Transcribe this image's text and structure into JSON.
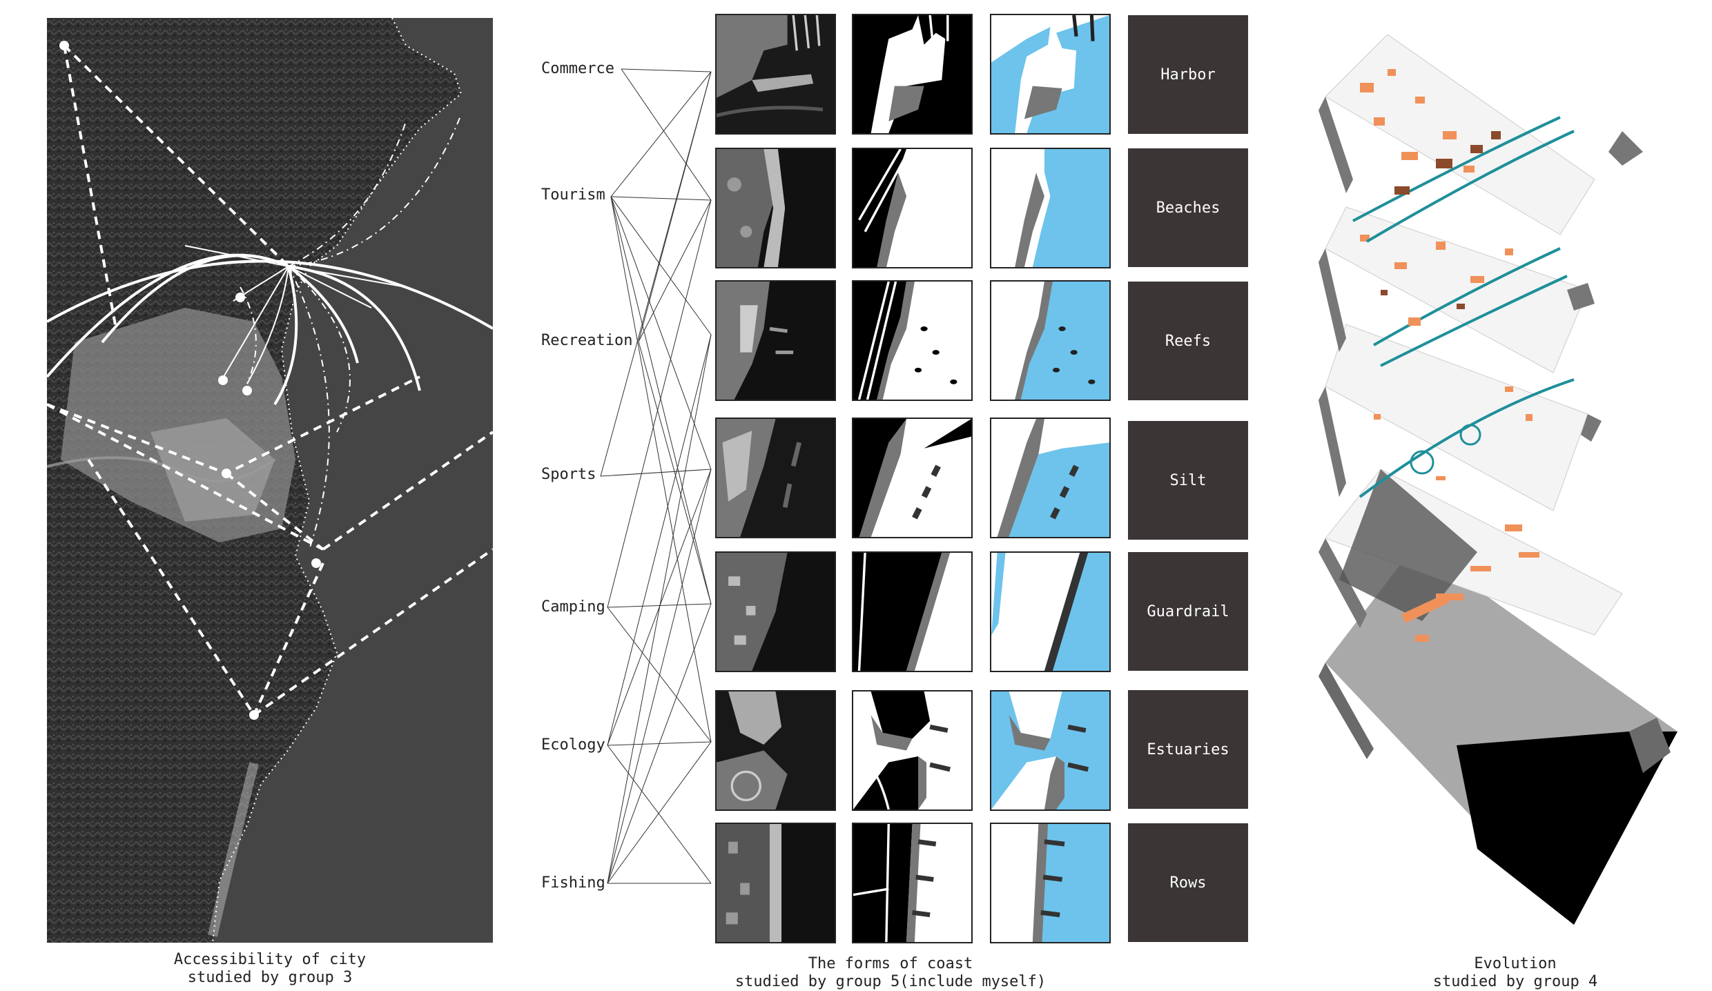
{
  "accessibility": {
    "caption_line1": "Accessibility of city",
    "caption_line2": "studied by group 3"
  },
  "coast": {
    "caption_line1": "The forms of coast",
    "caption_line2": "studied by group 5(include myself)",
    "categories": [
      "Commerce",
      "Tourism",
      "Recreation",
      "Sports",
      "Camping",
      "Ecology",
      "Fishing"
    ],
    "forms": [
      "Harbor",
      "Beaches",
      "Reefs",
      "Silt",
      "Guardrail",
      "Estuaries",
      "Rows"
    ]
  },
  "evolution": {
    "caption_line1": "Evolution",
    "caption_line2": "studied by group 4"
  },
  "colors": {
    "water": "#6dc3ec",
    "dark_tile": "#3b3535",
    "orange": "#f0915a",
    "teal": "#1e8f9a",
    "brown": "#8b4a2b"
  }
}
